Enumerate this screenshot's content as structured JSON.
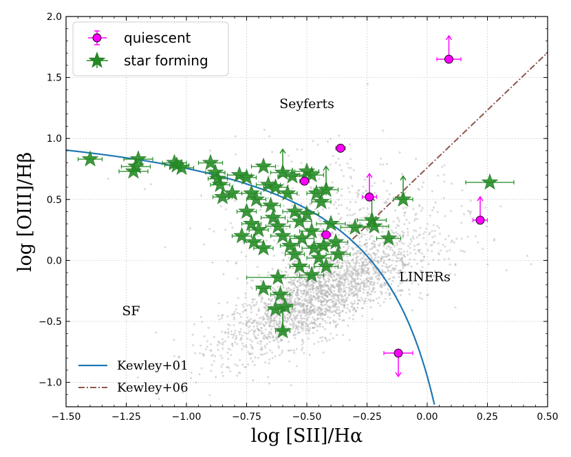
{
  "chart_data": {
    "type": "scatter",
    "xlabel": "log [SII]/Hα",
    "ylabel": "log [OIII]/Hβ",
    "xlim": [
      -1.5,
      0.5
    ],
    "ylim": [
      -1.2,
      2.0
    ],
    "x_ticks": [
      "−1.50",
      "−1.25",
      "−1.00",
      "−0.75",
      "−0.50",
      "−0.25",
      "0.00",
      "0.25",
      "0.50"
    ],
    "y_ticks": [
      "−1.0",
      "−0.5",
      "0.0",
      "0.5",
      "1.0",
      "1.5",
      "2.0"
    ],
    "grid": true,
    "annotations": [
      {
        "text": "Seyferts",
        "x": -0.5,
        "y": 1.25
      },
      {
        "text": "LINERs",
        "x": -0.01,
        "y": -0.17
      },
      {
        "text": "SF",
        "x": -1.23,
        "y": -0.45
      }
    ],
    "legend_top": [
      "quiescent",
      "star forming"
    ],
    "legend_bottom": [
      "Kewley+01",
      "Kewley+06"
    ],
    "lines": {
      "kewley01": {
        "name": "Kewley+01",
        "color": "#1f77b4",
        "formula": "0.72/(x-0.32)+1.30",
        "x_range": [
          -1.5,
          0.034
        ]
      },
      "kewley06": {
        "name": "Kewley+06",
        "color": "#8c564b",
        "formula": "1.89*x+0.76",
        "x_range": [
          -0.31,
          0.5
        ]
      }
    },
    "background_sample": {
      "name": "SDSS galaxies",
      "color": "#b3b3b3",
      "center": [
        -0.45,
        -0.3
      ],
      "spread": [
        0.2,
        0.28
      ],
      "n": 2600
    },
    "series": [
      {
        "name": "quiescent",
        "color": "#ff00ff",
        "points": [
          {
            "x": 0.09,
            "y": 1.65,
            "xerr": 0.05,
            "upper_limit": true
          },
          {
            "x": -0.36,
            "y": 0.92,
            "xerr": 0.02
          },
          {
            "x": -0.51,
            "y": 0.65,
            "xerr": 0.02
          },
          {
            "x": -0.24,
            "y": 0.52,
            "xerr": 0.03,
            "upper_limit": true
          },
          {
            "x": 0.22,
            "y": 0.33,
            "xerr": 0.03,
            "upper_limit": true
          },
          {
            "x": -0.42,
            "y": 0.21,
            "xerr": 0.02
          },
          {
            "x": -0.12,
            "y": -0.76,
            "xerr": 0.06,
            "lower_limit": true
          }
        ]
      },
      {
        "name": "star forming",
        "color": "#228b22",
        "points": [
          {
            "x": -1.4,
            "y": 0.83,
            "xerr": 0.05
          },
          {
            "x": -1.2,
            "y": 0.83,
            "xerr": 0.06
          },
          {
            "x": -1.21,
            "y": 0.77,
            "xerr": 0.06
          },
          {
            "x": -1.22,
            "y": 0.73,
            "xerr": 0.06
          },
          {
            "x": -1.05,
            "y": 0.8,
            "xerr": 0.05
          },
          {
            "x": -1.04,
            "y": 0.78,
            "xerr": 0.05
          },
          {
            "x": -1.02,
            "y": 0.76,
            "xerr": 0.05
          },
          {
            "x": -0.9,
            "y": 0.8,
            "xerr": 0.05
          },
          {
            "x": -0.88,
            "y": 0.72,
            "xerr": 0.04
          },
          {
            "x": -0.87,
            "y": 0.67,
            "xerr": 0.04
          },
          {
            "x": -0.86,
            "y": 0.62,
            "xerr": 0.04
          },
          {
            "x": -0.85,
            "y": 0.52,
            "xerr": 0.04
          },
          {
            "x": -0.81,
            "y": 0.55,
            "xerr": 0.04
          },
          {
            "x": -0.78,
            "y": 0.7,
            "xerr": 0.05
          },
          {
            "x": -0.75,
            "y": 0.68,
            "xerr": 0.04
          },
          {
            "x": -0.73,
            "y": 0.55,
            "xerr": 0.04
          },
          {
            "x": -0.71,
            "y": 0.5,
            "xerr": 0.04
          },
          {
            "x": -0.68,
            "y": 0.77,
            "xerr": 0.05
          },
          {
            "x": -0.66,
            "y": 0.62,
            "xerr": 0.05
          },
          {
            "x": -0.65,
            "y": 0.45,
            "xerr": 0.04
          },
          {
            "x": -0.63,
            "y": 0.6,
            "xerr": 0.05
          },
          {
            "x": -0.6,
            "y": 0.72,
            "xerr": 0.05,
            "upper_limit": true
          },
          {
            "x": -0.58,
            "y": 0.55,
            "xerr": 0.04
          },
          {
            "x": -0.56,
            "y": 0.69,
            "xerr": 0.06
          },
          {
            "x": -0.5,
            "y": 0.73,
            "xerr": 0.05
          },
          {
            "x": -0.48,
            "y": 0.7,
            "xerr": 0.05
          },
          {
            "x": -0.46,
            "y": 0.55,
            "xerr": 0.04
          },
          {
            "x": -0.44,
            "y": 0.48,
            "xerr": 0.04
          },
          {
            "x": -0.42,
            "y": 0.58,
            "xerr": 0.05,
            "upper_limit": true
          },
          {
            "x": -0.75,
            "y": 0.4,
            "xerr": 0.04
          },
          {
            "x": -0.73,
            "y": 0.3,
            "xerr": 0.04
          },
          {
            "x": -0.7,
            "y": 0.25,
            "xerr": 0.04
          },
          {
            "x": -0.77,
            "y": 0.2,
            "xerr": 0.04
          },
          {
            "x": -0.72,
            "y": 0.15,
            "xerr": 0.04
          },
          {
            "x": -0.68,
            "y": 0.1,
            "xerr": 0.04
          },
          {
            "x": -0.64,
            "y": 0.35,
            "xerr": 0.05
          },
          {
            "x": -0.62,
            "y": 0.28,
            "xerr": 0.05
          },
          {
            "x": -0.6,
            "y": 0.2,
            "xerr": 0.05
          },
          {
            "x": -0.57,
            "y": 0.12,
            "xerr": 0.04
          },
          {
            "x": -0.55,
            "y": 0.4,
            "xerr": 0.05
          },
          {
            "x": -0.53,
            "y": 0.32,
            "xerr": 0.05
          },
          {
            "x": -0.52,
            "y": 0.18,
            "xerr": 0.05
          },
          {
            "x": -0.5,
            "y": 0.38,
            "xerr": 0.05
          },
          {
            "x": -0.48,
            "y": 0.24,
            "xerr": 0.05
          },
          {
            "x": -0.47,
            "y": 0.1,
            "xerr": 0.05
          },
          {
            "x": -0.45,
            "y": 0.02,
            "xerr": 0.05
          },
          {
            "x": -0.43,
            "y": 0.12,
            "xerr": 0.05
          },
          {
            "x": -0.42,
            "y": -0.05,
            "xerr": 0.05
          },
          {
            "x": -0.4,
            "y": 0.3,
            "xerr": 0.06
          },
          {
            "x": -0.38,
            "y": 0.15,
            "xerr": 0.05
          },
          {
            "x": -0.37,
            "y": 0.05,
            "xerr": 0.05
          },
          {
            "x": -0.55,
            "y": 0.05,
            "xerr": 0.04
          },
          {
            "x": -0.53,
            "y": -0.05,
            "xerr": 0.04
          },
          {
            "x": -0.48,
            "y": -0.12,
            "xerr": 0.05
          },
          {
            "x": -0.3,
            "y": 0.27,
            "xerr": 0.06
          },
          {
            "x": -0.23,
            "y": 0.33,
            "xerr": 0.06,
            "upper_limit": true
          },
          {
            "x": -0.22,
            "y": 0.28,
            "xerr": 0.06
          },
          {
            "x": -0.16,
            "y": 0.18,
            "xerr": 0.05
          },
          {
            "x": -0.1,
            "y": 0.5,
            "xerr": 0.04,
            "upper_limit": true
          },
          {
            "x": 0.26,
            "y": 0.64,
            "xerr": 0.1
          },
          {
            "x": -0.68,
            "y": -0.23,
            "xerr": 0.03
          },
          {
            "x": -0.62,
            "y": -0.14,
            "xerr": 0.13
          },
          {
            "x": -0.61,
            "y": -0.28,
            "xerr": 0.04
          },
          {
            "x": -0.63,
            "y": -0.4,
            "xerr": 0.03
          },
          {
            "x": -0.59,
            "y": -0.38,
            "xerr": 0.03
          },
          {
            "x": -0.6,
            "y": -0.58,
            "xerr": 0.03,
            "upper_limit": true
          }
        ]
      }
    ]
  }
}
